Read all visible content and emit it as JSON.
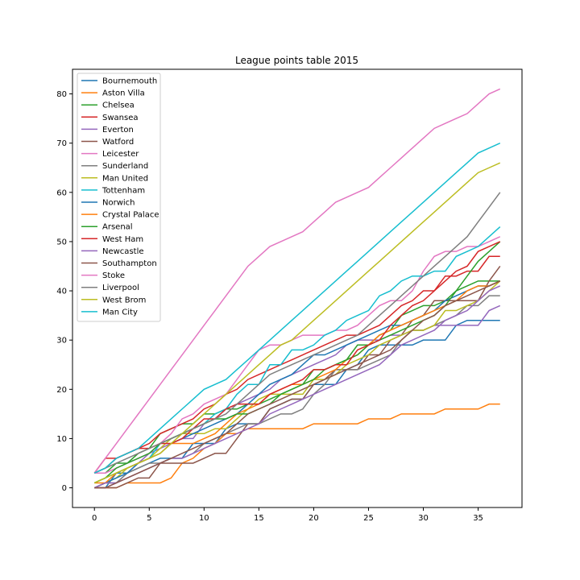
{
  "chart_data": {
    "type": "line",
    "title": "League points table 2015",
    "xlabel": "",
    "ylabel": "",
    "xlim": [
      -2,
      39
    ],
    "ylim": [
      -4,
      85
    ],
    "xticks": [
      0,
      5,
      10,
      15,
      20,
      25,
      30,
      35
    ],
    "yticks": [
      0,
      10,
      20,
      30,
      40,
      50,
      60,
      70,
      80
    ],
    "grid": false,
    "legend_position": "top-left",
    "x": [
      0,
      1,
      2,
      3,
      4,
      5,
      6,
      7,
      8,
      9,
      10,
      11,
      12,
      13,
      14,
      15,
      16,
      17,
      18,
      19,
      20,
      21,
      22,
      23,
      24,
      25,
      26,
      27,
      28,
      29,
      30,
      31,
      32,
      33,
      34,
      35,
      36,
      37
    ],
    "series": [
      {
        "name": "Bournemouth",
        "color": "#1f77b4",
        "values": [
          0,
          0,
          3,
          3,
          4,
          5,
          6,
          6,
          6,
          9,
          9,
          9,
          12,
          13,
          13,
          13,
          16,
          17,
          18,
          18,
          21,
          21,
          21,
          24,
          25,
          28,
          29,
          29,
          29,
          29,
          30,
          30,
          30,
          33,
          34,
          34,
          34,
          34
        ]
      },
      {
        "name": "Aston Villa",
        "color": "#ff7f0e",
        "values": [
          0,
          0,
          0,
          1,
          1,
          1,
          1,
          2,
          5,
          6,
          8,
          9,
          11,
          11,
          12,
          12,
          12,
          12,
          12,
          12,
          13,
          13,
          13,
          13,
          13,
          14,
          14,
          14,
          15,
          15,
          15,
          15,
          16,
          16,
          16,
          16,
          17,
          17
        ]
      },
      {
        "name": "Chelsea",
        "color": "#2ca02c",
        "values": [
          3,
          3,
          5,
          5,
          7,
          8,
          11,
          12,
          13,
          13,
          15,
          15,
          16,
          16,
          17,
          17,
          18,
          19,
          20,
          21,
          24,
          24,
          25,
          26,
          29,
          29,
          31,
          32,
          35,
          36,
          37,
          37,
          38,
          40,
          41,
          42,
          42,
          42
        ]
      },
      {
        "name": "Swansea",
        "color": "#d62728",
        "values": [
          3,
          4,
          6,
          7,
          8,
          9,
          11,
          12,
          13,
          14,
          16,
          17,
          19,
          20,
          22,
          23,
          24,
          25,
          26,
          27,
          28,
          29,
          30,
          31,
          31,
          32,
          33,
          35,
          37,
          38,
          40,
          40,
          43,
          43,
          44,
          44,
          47,
          47
        ]
      },
      {
        "name": "Everton",
        "color": "#9467bd",
        "values": [
          0,
          0,
          1,
          3,
          5,
          7,
          8,
          9,
          10,
          10,
          13,
          14,
          16,
          17,
          18,
          19,
          20,
          22,
          23,
          24,
          25,
          26,
          27,
          29,
          30,
          30,
          30,
          31,
          31,
          32,
          32,
          33,
          33,
          33,
          33,
          33,
          36,
          37
        ]
      },
      {
        "name": "Watford",
        "color": "#8c564b",
        "values": [
          0,
          0,
          0,
          1,
          2,
          2,
          5,
          5,
          5,
          5,
          6,
          7,
          7,
          10,
          13,
          13,
          16,
          17,
          18,
          18,
          21,
          22,
          24,
          24,
          24,
          27,
          27,
          30,
          31,
          34,
          35,
          38,
          38,
          38,
          38,
          38,
          42,
          45
        ]
      },
      {
        "name": "Leicester",
        "color": "#e377c2",
        "values": [
          3,
          3,
          4,
          5,
          6,
          7,
          9,
          11,
          14,
          15,
          17,
          18,
          19,
          22,
          25,
          28,
          29,
          29,
          30,
          31,
          31,
          31,
          32,
          32,
          33,
          35,
          37,
          38,
          38,
          40,
          44,
          47,
          48,
          48,
          49,
          49,
          50,
          51
        ]
      },
      {
        "name": "Sunderland",
        "color": "#7f7f7f",
        "values": [
          0,
          1,
          1,
          3,
          4,
          5,
          5,
          6,
          6,
          7,
          9,
          10,
          11,
          12,
          13,
          13,
          14,
          15,
          15,
          16,
          19,
          21,
          24,
          24,
          24,
          25,
          26,
          27,
          30,
          32,
          32,
          33,
          34,
          35,
          37,
          37,
          39,
          39
        ]
      },
      {
        "name": "Man United",
        "color": "#bcbd22",
        "values": [
          0,
          1,
          2,
          4,
          5,
          6,
          8,
          10,
          11,
          11,
          11,
          12,
          12,
          14,
          16,
          18,
          19,
          19,
          19,
          19,
          22,
          22,
          23,
          25,
          26,
          27,
          29,
          30,
          31,
          32,
          32,
          33,
          36,
          36,
          37,
          38,
          40,
          42
        ]
      },
      {
        "name": "Tottenham",
        "color": "#17becf",
        "values": [
          1,
          2,
          3,
          4,
          5,
          6,
          9,
          10,
          11,
          12,
          13,
          15,
          16,
          19,
          21,
          21,
          25,
          25,
          28,
          28,
          29,
          31,
          32,
          34,
          35,
          36,
          39,
          40,
          42,
          43,
          43,
          44,
          44,
          47,
          48,
          49,
          51,
          53
        ]
      },
      {
        "name": "Norwich",
        "color": "#1f77b4",
        "values": [
          0,
          1,
          2,
          3,
          5,
          6,
          7,
          9,
          10,
          11,
          12,
          13,
          14,
          15,
          17,
          19,
          21,
          22,
          23,
          25,
          27,
          27,
          28,
          29,
          30,
          31,
          32,
          33,
          33,
          34,
          35,
          36,
          38,
          39,
          40,
          41,
          41,
          42
        ]
      },
      {
        "name": "Crystal Palace",
        "color": "#ff7f0e",
        "values": [
          1,
          1,
          3,
          4,
          5,
          6,
          7,
          9,
          9,
          9,
          10,
          11,
          13,
          15,
          16,
          17,
          19,
          20,
          21,
          21,
          22,
          23,
          24,
          26,
          27,
          29,
          31,
          32,
          33,
          34,
          35,
          36,
          37,
          38,
          40,
          41,
          41,
          42
        ]
      },
      {
        "name": "Arsenal",
        "color": "#2ca02c",
        "values": [
          1,
          2,
          4,
          5,
          6,
          7,
          9,
          10,
          11,
          12,
          13,
          14,
          14,
          15,
          15,
          16,
          17,
          19,
          20,
          21,
          22,
          24,
          25,
          26,
          27,
          29,
          30,
          31,
          32,
          33,
          34,
          35,
          37,
          40,
          43,
          46,
          48,
          50
        ]
      },
      {
        "name": "West Ham",
        "color": "#d62728",
        "values": [
          3,
          6,
          6,
          7,
          8,
          8,
          9,
          9,
          10,
          12,
          14,
          14,
          16,
          17,
          17,
          17,
          19,
          20,
          21,
          22,
          24,
          24,
          25,
          25,
          28,
          29,
          30,
          33,
          35,
          37,
          38,
          40,
          42,
          44,
          45,
          48,
          49,
          50
        ]
      },
      {
        "name": "Newcastle",
        "color": "#9467bd",
        "values": [
          0,
          1,
          1,
          2,
          3,
          4,
          5,
          6,
          6,
          7,
          8,
          9,
          10,
          11,
          12,
          13,
          15,
          16,
          17,
          18,
          19,
          20,
          21,
          22,
          23,
          24,
          25,
          27,
          29,
          30,
          31,
          32,
          34,
          35,
          36,
          38,
          40,
          41
        ]
      },
      {
        "name": "Southampton",
        "color": "#8c564b",
        "values": [
          0,
          0,
          1,
          2,
          3,
          4,
          5,
          6,
          7,
          8,
          9,
          10,
          11,
          13,
          15,
          16,
          17,
          18,
          19,
          20,
          21,
          22,
          23,
          24,
          25,
          26,
          27,
          28,
          30,
          32,
          34,
          35,
          37,
          38,
          39,
          40,
          41,
          42
        ]
      },
      {
        "name": "Stoke",
        "color": "#e377c2",
        "values": [
          3,
          6,
          9,
          12,
          15,
          18,
          21,
          24,
          27,
          30,
          33,
          36,
          39,
          42,
          45,
          47,
          49,
          50,
          51,
          52,
          54,
          56,
          58,
          59,
          60,
          61,
          63,
          65,
          67,
          69,
          71,
          73,
          74,
          75,
          76,
          78,
          80,
          81
        ]
      },
      {
        "name": "Liverpool",
        "color": "#7f7f7f",
        "values": [
          3,
          4,
          5,
          6,
          7,
          8,
          9,
          10,
          11,
          12,
          13,
          14,
          15,
          17,
          19,
          21,
          23,
          24,
          25,
          26,
          27,
          28,
          29,
          30,
          31,
          33,
          35,
          37,
          39,
          41,
          43,
          45,
          47,
          49,
          51,
          54,
          57,
          60
        ]
      },
      {
        "name": "West Brom",
        "color": "#bcbd22",
        "values": [
          1,
          2,
          3,
          4,
          5,
          6,
          7,
          9,
          11,
          13,
          15,
          17,
          19,
          21,
          23,
          25,
          27,
          29,
          30,
          32,
          34,
          36,
          38,
          40,
          42,
          44,
          46,
          48,
          50,
          52,
          54,
          56,
          58,
          60,
          62,
          64,
          65,
          66
        ]
      },
      {
        "name": "Man City",
        "color": "#17becf",
        "values": [
          3,
          4,
          6,
          7,
          8,
          10,
          12,
          14,
          16,
          18,
          20,
          21,
          22,
          24,
          26,
          28,
          30,
          32,
          34,
          36,
          38,
          40,
          42,
          44,
          46,
          48,
          50,
          52,
          54,
          56,
          58,
          60,
          62,
          64,
          66,
          68,
          69,
          70
        ]
      }
    ]
  }
}
